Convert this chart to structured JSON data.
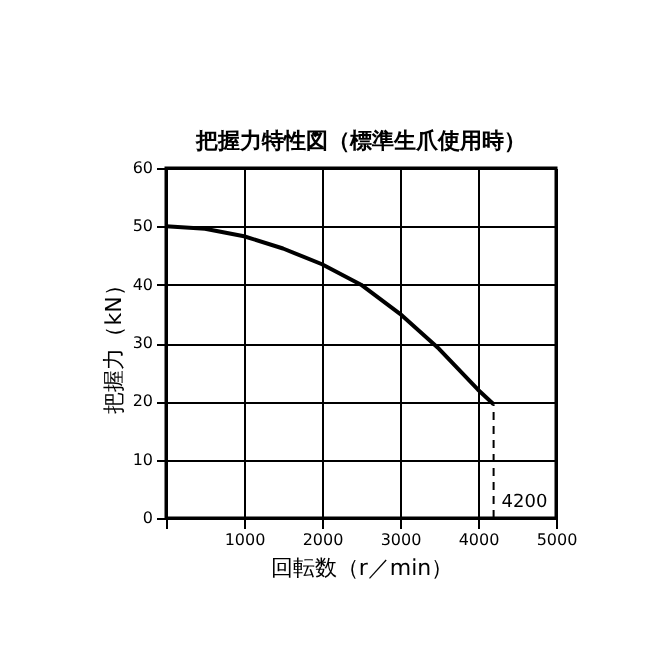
{
  "chart_data": {
    "type": "line",
    "title": "把握力特性図（標準生爪使用時）",
    "xlabel": "回転数（r／min）",
    "ylabel": "把握力（kN）",
    "x": [
      0,
      500,
      1000,
      1500,
      2000,
      2500,
      3000,
      3500,
      4000,
      4200
    ],
    "series": [
      {
        "color": "#000000",
        "values": [
          50,
          49.6,
          48.3,
          46.2,
          43.5,
          40,
          35,
          29,
          22,
          19.5
        ]
      }
    ],
    "xlim": [
      0,
      5000
    ],
    "ylim": [
      0,
      60
    ],
    "xticks": [
      {
        "value": 0,
        "label": null
      },
      1000,
      2000,
      3000,
      4000,
      5000
    ],
    "yticks": [
      0,
      10,
      20,
      30,
      40,
      50,
      60
    ],
    "ref_lines": [
      {
        "axis": "x",
        "value": 4200,
        "label": "4200",
        "line_style": "dashed"
      }
    ],
    "grid": true,
    "marker": "none",
    "line_style": "solid"
  }
}
